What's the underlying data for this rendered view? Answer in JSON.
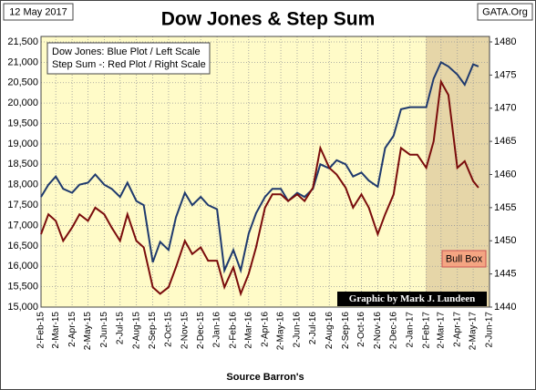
{
  "chart_data": {
    "type": "line",
    "title": "Dow Jones & Step Sum",
    "date_label": "12 May 2017",
    "site": "GATA.Org",
    "legend_text": [
      "Dow Jones: Blue Plot / Left Scale",
      "Step Sum -: Red Plot / Right Scale"
    ],
    "credit": "Graphic by Mark J. Lundeen",
    "xlabel": "Source Barron's",
    "bull_box": {
      "label": "Bull Box",
      "start": "2017-02-01"
    },
    "x": [
      "2015-02-02",
      "2015-02-16",
      "2015-03-02",
      "2015-03-16",
      "2015-04-02",
      "2015-04-16",
      "2015-05-02",
      "2015-05-16",
      "2015-06-02",
      "2015-06-16",
      "2015-07-02",
      "2015-07-16",
      "2015-08-02",
      "2015-08-16",
      "2015-09-02",
      "2015-09-16",
      "2015-10-02",
      "2015-10-16",
      "2015-11-02",
      "2015-11-16",
      "2015-12-02",
      "2015-12-16",
      "2016-01-02",
      "2016-01-16",
      "2016-02-02",
      "2016-02-16",
      "2016-03-02",
      "2016-03-16",
      "2016-04-02",
      "2016-04-16",
      "2016-05-02",
      "2016-05-16",
      "2016-06-02",
      "2016-06-16",
      "2016-07-02",
      "2016-07-16",
      "2016-08-02",
      "2016-08-16",
      "2016-09-02",
      "2016-09-16",
      "2016-10-02",
      "2016-10-16",
      "2016-11-02",
      "2016-11-16",
      "2016-12-02",
      "2016-12-16",
      "2017-01-02",
      "2017-01-16",
      "2017-02-02",
      "2017-02-16",
      "2017-03-02",
      "2017-03-16",
      "2017-04-02",
      "2017-04-16",
      "2017-05-02",
      "2017-05-12"
    ],
    "series": [
      {
        "name": "Dow Jones",
        "color": "#1f3a6e",
        "axis": "y",
        "values": [
          17700,
          18000,
          18200,
          17900,
          17800,
          18000,
          18050,
          18250,
          18000,
          17900,
          17700,
          18050,
          17600,
          17500,
          16100,
          16600,
          16400,
          17200,
          17800,
          17500,
          17700,
          17500,
          17400,
          15900,
          16400,
          15900,
          16800,
          17300,
          17700,
          17900,
          17900,
          17600,
          17800,
          17700,
          17900,
          18500,
          18400,
          18600,
          18500,
          18200,
          18300,
          18100,
          17950,
          18900,
          19200,
          19850,
          19900,
          19900,
          19900,
          20600,
          21000,
          20900,
          20700,
          20450,
          20950,
          20900
        ]
      },
      {
        "name": "Step Sum",
        "color": "#7a0c0c",
        "axis": "y2",
        "values": [
          1451,
          1454,
          1453,
          1450,
          1452,
          1454,
          1453,
          1455,
          1454,
          1452,
          1450,
          1454,
          1450,
          1449,
          1443,
          1442,
          1443,
          1446,
          1450,
          1448,
          1449,
          1447,
          1447,
          1443,
          1446,
          1442,
          1445,
          1449,
          1455,
          1457,
          1457,
          1456,
          1457,
          1456,
          1458,
          1464,
          1461,
          1460,
          1458,
          1455,
          1457,
          1455,
          1451,
          1454,
          1457,
          1464,
          1463,
          1463,
          1461,
          1465,
          1474,
          1472,
          1461,
          1462,
          1459,
          1458
        ]
      }
    ],
    "xlim": [
      "2015-02-02",
      "2017-06-02"
    ],
    "xticks": [
      {
        "value": "2015-02-02",
        "label": "2-Feb-15"
      },
      {
        "value": "2015-03-02",
        "label": "2-Mar-15"
      },
      {
        "value": "2015-04-02",
        "label": "2-Apr-15"
      },
      {
        "value": "2015-05-02",
        "label": "2-May-15"
      },
      {
        "value": "2015-06-02",
        "label": "2-Jun-15"
      },
      {
        "value": "2015-07-02",
        "label": "2-Jul-15"
      },
      {
        "value": "2015-08-02",
        "label": "2-Aug-15"
      },
      {
        "value": "2015-09-02",
        "label": "2-Sep-15"
      },
      {
        "value": "2015-10-02",
        "label": "2-Oct-15"
      },
      {
        "value": "2015-11-02",
        "label": "2-Nov-15"
      },
      {
        "value": "2015-12-02",
        "label": "2-Dec-15"
      },
      {
        "value": "2016-01-02",
        "label": "2-Jan-16"
      },
      {
        "value": "2016-02-02",
        "label": "2-Feb-16"
      },
      {
        "value": "2016-03-02",
        "label": "2-Mar-16"
      },
      {
        "value": "2016-04-02",
        "label": "2-Apr-16"
      },
      {
        "value": "2016-05-02",
        "label": "2-May-16"
      },
      {
        "value": "2016-06-02",
        "label": "2-Jun-16"
      },
      {
        "value": "2016-07-02",
        "label": "2-Jul-16"
      },
      {
        "value": "2016-08-02",
        "label": "2-Aug-16"
      },
      {
        "value": "2016-09-02",
        "label": "2-Sep-16"
      },
      {
        "value": "2016-10-02",
        "label": "2-Oct-16"
      },
      {
        "value": "2016-11-02",
        "label": "2-Nov-16"
      },
      {
        "value": "2016-12-02",
        "label": "2-Dec-16"
      },
      {
        "value": "2017-01-02",
        "label": "2-Jan-17"
      },
      {
        "value": "2017-02-02",
        "label": "2-Feb-17"
      },
      {
        "value": "2017-03-02",
        "label": "2-Mar-17"
      },
      {
        "value": "2017-04-02",
        "label": "2-Apr-17"
      },
      {
        "value": "2017-05-02",
        "label": "2-May-17"
      },
      {
        "value": "2017-06-02",
        "label": "2-Jun-17"
      }
    ],
    "ylim": [
      15000,
      21500
    ],
    "yticks": [
      {
        "value": 15000,
        "label": "15,000"
      },
      {
        "value": 15500,
        "label": "15,500"
      },
      {
        "value": 16000,
        "label": "16,000"
      },
      {
        "value": 16500,
        "label": "16,500"
      },
      {
        "value": 17000,
        "label": "17,000"
      },
      {
        "value": 17500,
        "label": "17,500"
      },
      {
        "value": 18000,
        "label": "18,000"
      },
      {
        "value": 18500,
        "label": "18,500"
      },
      {
        "value": 19000,
        "label": "19,000"
      },
      {
        "value": 19500,
        "label": "19,500"
      },
      {
        "value": 20000,
        "label": "20,000"
      },
      {
        "value": 20500,
        "label": "20,500"
      },
      {
        "value": 21000,
        "label": "21,000"
      },
      {
        "value": 21500,
        "label": "21,500"
      }
    ],
    "y2lim": [
      1440,
      1480
    ],
    "y2ticks": [
      1440,
      1445,
      1450,
      1455,
      1460,
      1465,
      1470,
      1475,
      1480
    ],
    "grid": true
  }
}
